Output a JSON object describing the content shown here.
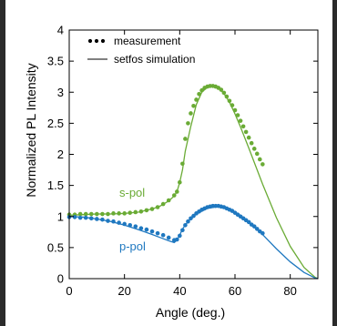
{
  "chart_data": {
    "type": "line",
    "xlabel": "Angle (deg.)",
    "ylabel": "Normalized PL Intensity",
    "xlim": [
      0,
      90
    ],
    "ylim": [
      0,
      4
    ],
    "xticks": [
      "0",
      "20",
      "40",
      "60",
      "80"
    ],
    "yticks": [
      "0",
      "0.5",
      "1",
      "1.5",
      "2",
      "2.5",
      "3",
      "3.5",
      "4"
    ],
    "grid": false,
    "legend_position": "top-left",
    "legend": [
      {
        "label": "measurement",
        "style": "dots"
      },
      {
        "label": "setfos simulation",
        "style": "line"
      }
    ],
    "annotations": [
      {
        "text": "s-pol",
        "color": "#6aab35"
      },
      {
        "text": "p-pol",
        "color": "#1f78c0"
      }
    ],
    "series": [
      {
        "name": "s-pol",
        "color": "#6aab35",
        "simulation": {
          "x": [
            0,
            5,
            10,
            15,
            20,
            25,
            30,
            33,
            36,
            38,
            39,
            40,
            41,
            42,
            44,
            46,
            48,
            50,
            52,
            54,
            56,
            58,
            60,
            62,
            65,
            70,
            75,
            80,
            85,
            89,
            90
          ],
          "y": [
            1.02,
            1.03,
            1.04,
            1.04,
            1.05,
            1.07,
            1.12,
            1.17,
            1.25,
            1.33,
            1.4,
            1.55,
            1.75,
            2.05,
            2.45,
            2.8,
            3.0,
            3.08,
            3.09,
            3.07,
            2.98,
            2.84,
            2.65,
            2.44,
            2.1,
            1.52,
            0.98,
            0.52,
            0.18,
            0.02,
            0.0
          ]
        },
        "measurement": {
          "x": [
            0,
            2,
            4,
            6,
            8,
            10,
            12,
            14,
            16,
            18,
            20,
            22,
            24,
            26,
            28,
            30,
            32,
            34,
            36,
            38,
            39,
            40,
            41,
            42,
            43,
            44,
            45,
            46,
            47,
            48,
            49,
            50,
            51,
            52,
            53,
            54,
            55,
            56,
            57,
            58,
            59,
            60,
            61,
            62,
            63,
            64,
            65,
            66,
            67,
            68,
            69,
            70
          ],
          "y": [
            1.03,
            1.03,
            1.04,
            1.04,
            1.04,
            1.04,
            1.04,
            1.04,
            1.05,
            1.05,
            1.05,
            1.06,
            1.07,
            1.08,
            1.1,
            1.12,
            1.15,
            1.2,
            1.26,
            1.34,
            1.4,
            1.55,
            1.85,
            2.25,
            2.5,
            2.66,
            2.78,
            2.88,
            2.97,
            3.03,
            3.07,
            3.09,
            3.1,
            3.1,
            3.09,
            3.07,
            3.04,
            2.99,
            2.93,
            2.86,
            2.79,
            2.71,
            2.63,
            2.54,
            2.45,
            2.36,
            2.27,
            2.18,
            2.09,
            2.01,
            1.92,
            1.84
          ]
        }
      },
      {
        "name": "p-pol",
        "color": "#1f78c0",
        "simulation": {
          "x": [
            0,
            5,
            10,
            15,
            20,
            25,
            30,
            33,
            36,
            38,
            39,
            40,
            41,
            43,
            46,
            50,
            54,
            58,
            62,
            66,
            70,
            75,
            80,
            85,
            89,
            90
          ],
          "y": [
            1.0,
            0.99,
            0.96,
            0.92,
            0.86,
            0.79,
            0.71,
            0.66,
            0.61,
            0.58,
            0.62,
            0.7,
            0.8,
            0.92,
            1.04,
            1.13,
            1.16,
            1.12,
            1.02,
            0.88,
            0.71,
            0.48,
            0.27,
            0.1,
            0.01,
            0.0
          ]
        },
        "measurement": {
          "x": [
            0,
            2,
            4,
            6,
            8,
            10,
            12,
            14,
            16,
            18,
            20,
            22,
            24,
            26,
            28,
            30,
            32,
            34,
            36,
            38,
            39,
            40,
            41,
            42,
            43,
            44,
            45,
            46,
            47,
            48,
            49,
            50,
            51,
            52,
            53,
            54,
            55,
            56,
            57,
            58,
            59,
            60,
            61,
            62,
            63,
            64,
            65,
            66,
            67,
            68,
            69,
            70
          ],
          "y": [
            0.99,
            0.99,
            0.98,
            0.98,
            0.97,
            0.96,
            0.95,
            0.93,
            0.92,
            0.9,
            0.88,
            0.86,
            0.84,
            0.81,
            0.79,
            0.76,
            0.73,
            0.7,
            0.66,
            0.62,
            0.63,
            0.69,
            0.78,
            0.86,
            0.92,
            0.97,
            1.01,
            1.05,
            1.08,
            1.11,
            1.13,
            1.15,
            1.16,
            1.17,
            1.17,
            1.17,
            1.16,
            1.15,
            1.13,
            1.11,
            1.09,
            1.06,
            1.03,
            1.0,
            0.97,
            0.94,
            0.91,
            0.87,
            0.84,
            0.8,
            0.76,
            0.73
          ]
        }
      }
    ]
  }
}
